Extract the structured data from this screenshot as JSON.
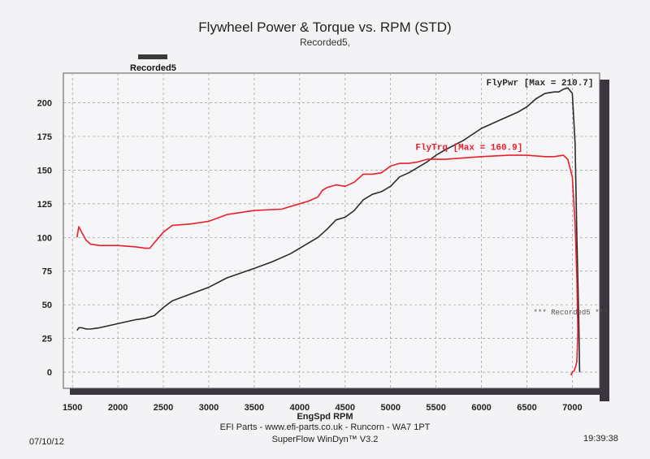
{
  "chart_data": {
    "type": "line",
    "title": "Flywheel Power & Torque vs. RPM (STD)",
    "subtitle": "Recorded5,",
    "legend": "Recorded5",
    "xlabel": "EngSpd RPM",
    "ylabel": "",
    "xlim": [
      1400,
      7300
    ],
    "ylim": [
      -12,
      222
    ],
    "x_ticks": [
      1500,
      2000,
      2500,
      3000,
      3500,
      4000,
      4500,
      5000,
      5500,
      6000,
      6500,
      7000
    ],
    "y_ticks": [
      0,
      25,
      50,
      75,
      100,
      125,
      150,
      175,
      200
    ],
    "series": [
      {
        "name": "FlyPwr",
        "label": "FlyPwr [Max = 210.7]",
        "color": "#2b2b2b",
        "x": [
          1550,
          1570,
          1600,
          1650,
          1700,
          1800,
          2000,
          2200,
          2300,
          2400,
          2500,
          2600,
          2800,
          3000,
          3200,
          3500,
          3700,
          3900,
          4100,
          4200,
          4300,
          4400,
          4500,
          4600,
          4700,
          4800,
          4900,
          5000,
          5100,
          5200,
          5300,
          5400,
          5500,
          5600,
          5800,
          6000,
          6200,
          6400,
          6500,
          6600,
          6700,
          6800,
          6850,
          6900,
          6950,
          7000,
          7030,
          7050,
          7070,
          7080
        ],
        "y": [
          31,
          33,
          33,
          32,
          32,
          33,
          36,
          39,
          40,
          42,
          48,
          53,
          58,
          63,
          70,
          77,
          82,
          88,
          96,
          100,
          106,
          113,
          115,
          120,
          128,
          132,
          134,
          138,
          145,
          148,
          152,
          156,
          161,
          165,
          172,
          181,
          187,
          193,
          197,
          203,
          207,
          208,
          208,
          210,
          211,
          207,
          170,
          100,
          40,
          0
        ]
      },
      {
        "name": "FlyTrq",
        "label": "FlyTrq [Max = 160.9]",
        "color": "#e8202a",
        "x": [
          1550,
          1570,
          1600,
          1650,
          1700,
          1800,
          2000,
          2200,
          2300,
          2350,
          2400,
          2500,
          2600,
          2800,
          3000,
          3200,
          3500,
          3800,
          4000,
          4100,
          4200,
          4250,
          4300,
          4400,
          4500,
          4600,
          4700,
          4800,
          4900,
          5000,
          5100,
          5200,
          5300,
          5400,
          5600,
          6000,
          6300,
          6500,
          6700,
          6800,
          6900,
          6950,
          7000,
          7030,
          7050,
          7060,
          7050,
          7040,
          7030,
          7020,
          7000,
          6990,
          6985
        ],
        "y": [
          100,
          108,
          104,
          98,
          95,
          94,
          94,
          93,
          92,
          92,
          96,
          104,
          109,
          110,
          112,
          117,
          120,
          121,
          125,
          127,
          130,
          135,
          137,
          139,
          138,
          141,
          147,
          147,
          148,
          153,
          155,
          155,
          156,
          158,
          158,
          160,
          161,
          161,
          160,
          160,
          161,
          158,
          145,
          110,
          70,
          30,
          8,
          5,
          3,
          1,
          0,
          -2,
          -1
        ]
      }
    ],
    "annotations": [
      "*** Recorded5 ***"
    ]
  },
  "footer": {
    "line1": "EFI Parts - www.efi-parts.co.uk - Runcorn - WA7 1PT",
    "line2": "SuperFlow WinDyn™ V3.2",
    "date": "07/10/12",
    "time": "19:39:38"
  }
}
